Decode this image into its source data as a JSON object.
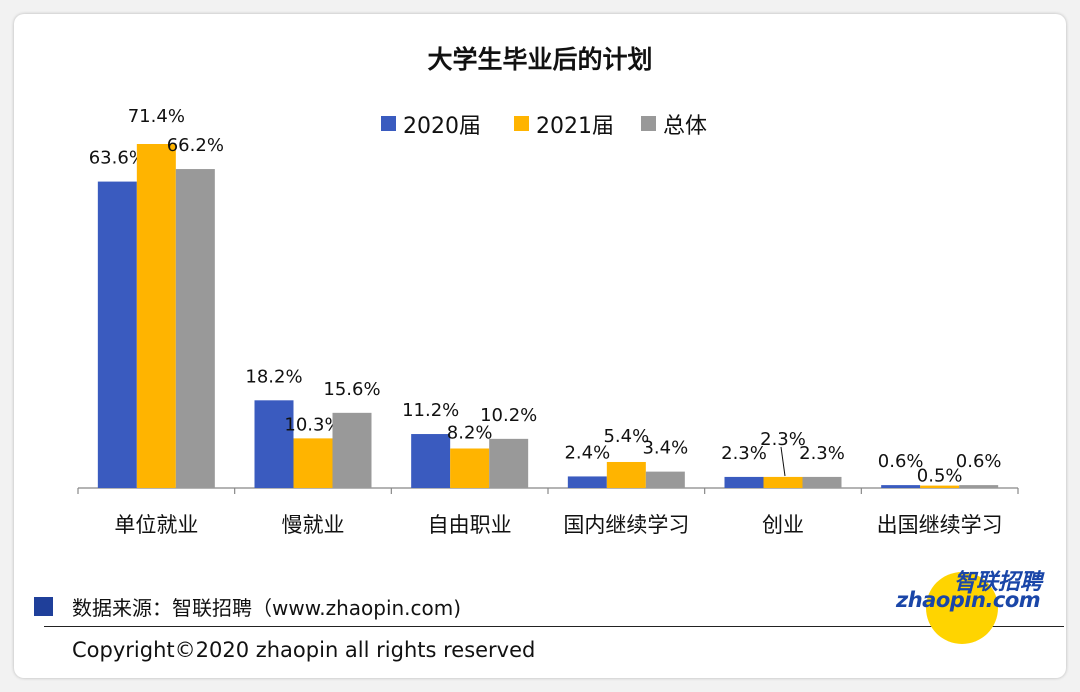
{
  "chart_data": {
    "type": "bar",
    "title": "大学生毕业后的计划",
    "categories": [
      "单位就业",
      "慢就业",
      "自由职业",
      "国内继续学习",
      "创业",
      "出国继续学习"
    ],
    "series": [
      {
        "name": "2020届",
        "color": "#3a5bbf",
        "values": [
          63.6,
          18.2,
          11.2,
          2.4,
          2.3,
          0.6
        ],
        "labels": [
          "63.6%",
          "18.2%",
          "11.2%",
          "2.4%",
          "2.3%",
          "0.6%"
        ]
      },
      {
        "name": "2021届",
        "color": "#ffb400",
        "values": [
          71.4,
          10.3,
          8.2,
          5.4,
          2.3,
          0.5
        ],
        "labels": [
          "71.4%",
          "10.3%",
          "8.2%",
          "5.4%",
          "2.3%",
          "0.5%"
        ]
      },
      {
        "name": "总体",
        "color": "#999999",
        "values": [
          66.2,
          15.6,
          10.2,
          3.4,
          2.3,
          0.6
        ],
        "labels": [
          "66.2%",
          "15.6%",
          "10.2%",
          "3.4%",
          "2.3%",
          "0.6%"
        ]
      }
    ],
    "xlabel": "",
    "ylabel": "",
    "ylim": [
      0,
      80
    ],
    "legend": "top-center",
    "grid": false
  },
  "footer": {
    "source": "数据来源：智联招聘（www.zhaopin.com)",
    "copyright": "Copyright©2020 zhaopin all rights reserved"
  },
  "logo": {
    "cn": "智联招聘",
    "en": "zhaopin.com"
  }
}
